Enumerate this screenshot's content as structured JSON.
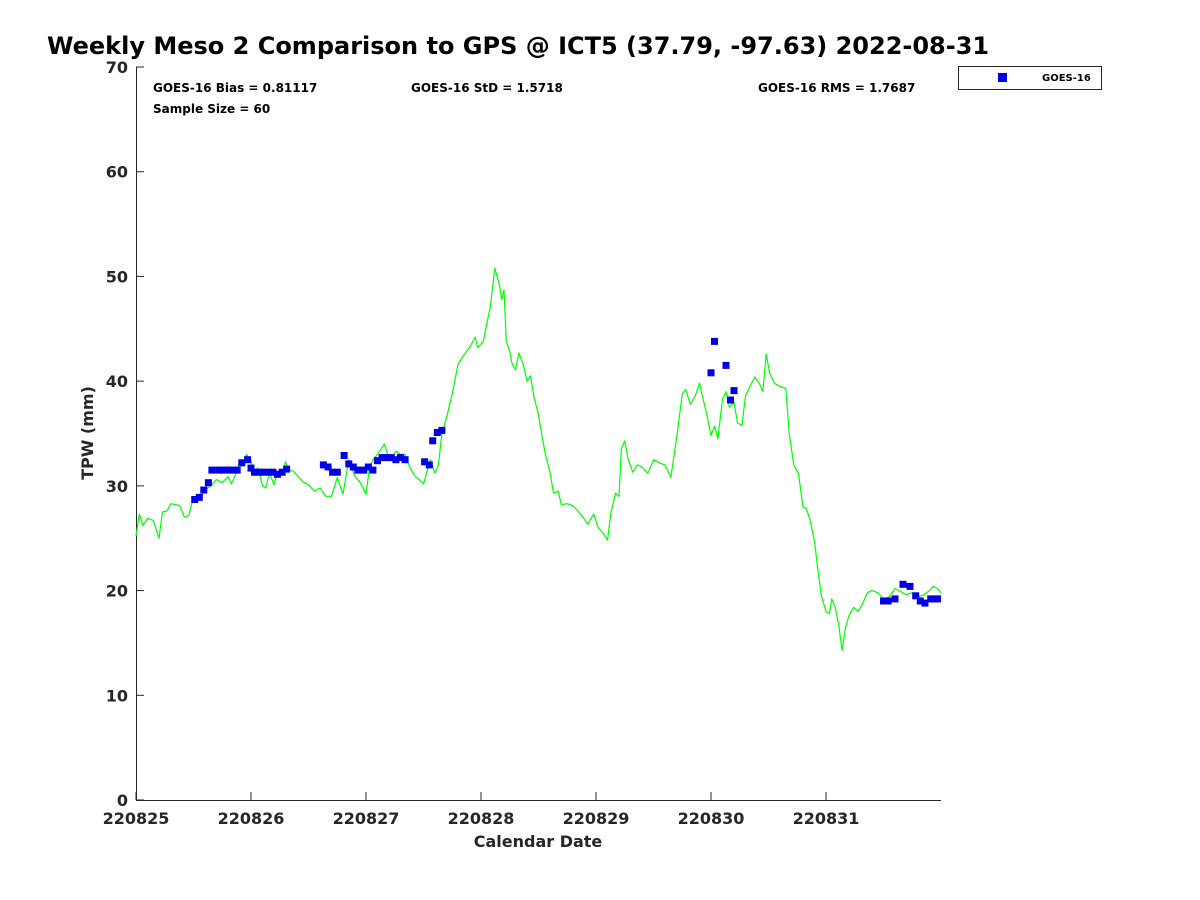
{
  "chart_data": {
    "type": "line",
    "title": "Weekly Meso 2 Comparison to GPS @ ICT5 (37.79, -97.63) 2022-08-31",
    "xlabel": "Calendar Date",
    "ylabel": "TPW (mm)",
    "xlim": [
      0,
      7
    ],
    "ylim": [
      0,
      70
    ],
    "x_ticks": [
      0,
      1,
      2,
      3,
      4,
      5,
      6
    ],
    "x_tick_labels": [
      "220825",
      "220826",
      "220827",
      "220828",
      "220829",
      "220830",
      "220831"
    ],
    "y_ticks": [
      0,
      10,
      20,
      30,
      40,
      50,
      60,
      70
    ],
    "y_tick_labels": [
      "0",
      "10",
      "20",
      "30",
      "40",
      "50",
      "60",
      "70"
    ],
    "grid": false,
    "legend_position": "outside-top-right",
    "stats": {
      "bias": "GOES-16 Bias = 0.81117",
      "std": "GOES-16 StD = 1.5718",
      "rms": "GOES-16 RMS = 1.7687",
      "sample": "Sample Size = 60"
    },
    "series": [
      {
        "name": "",
        "kind": "line",
        "color": "#00ff00",
        "points": [
          [
            0.0,
            25.2
          ],
          [
            0.03,
            27.3
          ],
          [
            0.06,
            26.2
          ],
          [
            0.1,
            26.9
          ],
          [
            0.15,
            26.7
          ],
          [
            0.2,
            25.0
          ],
          [
            0.23,
            27.5
          ],
          [
            0.27,
            27.6
          ],
          [
            0.3,
            28.3
          ],
          [
            0.35,
            28.2
          ],
          [
            0.38,
            28.1
          ],
          [
            0.42,
            27.0
          ],
          [
            0.46,
            27.2
          ],
          [
            0.5,
            28.9
          ],
          [
            0.55,
            28.6
          ],
          [
            0.6,
            29.6
          ],
          [
            0.65,
            30.0
          ],
          [
            0.7,
            30.6
          ],
          [
            0.75,
            30.3
          ],
          [
            0.8,
            30.9
          ],
          [
            0.83,
            30.2
          ],
          [
            0.87,
            31.2
          ],
          [
            0.9,
            32.3
          ],
          [
            0.93,
            32.0
          ],
          [
            0.96,
            33.0
          ],
          [
            1.0,
            32.4
          ],
          [
            1.03,
            31.0
          ],
          [
            1.06,
            31.7
          ],
          [
            1.1,
            30.0
          ],
          [
            1.13,
            29.8
          ],
          [
            1.16,
            31.3
          ],
          [
            1.2,
            30.1
          ],
          [
            1.23,
            31.3
          ],
          [
            1.27,
            31.0
          ],
          [
            1.3,
            32.3
          ],
          [
            1.33,
            31.5
          ],
          [
            1.37,
            31.4
          ],
          [
            1.4,
            31.0
          ],
          [
            1.45,
            30.4
          ],
          [
            1.5,
            30.1
          ],
          [
            1.55,
            29.5
          ],
          [
            1.6,
            29.8
          ],
          [
            1.65,
            29.0
          ],
          [
            1.7,
            29.0
          ],
          [
            1.75,
            30.8
          ],
          [
            1.8,
            29.2
          ],
          [
            1.85,
            32.5
          ],
          [
            1.9,
            31.0
          ],
          [
            1.95,
            30.3
          ],
          [
            2.0,
            29.2
          ],
          [
            2.03,
            31.6
          ],
          [
            2.06,
            32.5
          ],
          [
            2.1,
            33.0
          ],
          [
            2.13,
            33.5
          ],
          [
            2.16,
            34.0
          ],
          [
            2.2,
            32.6
          ],
          [
            2.23,
            32.8
          ],
          [
            2.26,
            33.3
          ],
          [
            2.3,
            33.0
          ],
          [
            2.34,
            33.0
          ],
          [
            2.38,
            31.8
          ],
          [
            2.42,
            31.0
          ],
          [
            2.46,
            30.6
          ],
          [
            2.5,
            30.2
          ],
          [
            2.53,
            31.3
          ],
          [
            2.56,
            32.5
          ],
          [
            2.6,
            31.2
          ],
          [
            2.63,
            32.0
          ],
          [
            2.66,
            35.0
          ],
          [
            2.7,
            36.5
          ],
          [
            2.75,
            38.8
          ],
          [
            2.8,
            41.6
          ],
          [
            2.85,
            42.5
          ],
          [
            2.9,
            43.2
          ],
          [
            2.95,
            44.2
          ],
          [
            2.97,
            43.2
          ],
          [
            3.02,
            43.8
          ],
          [
            3.06,
            46.0
          ],
          [
            3.08,
            47.0
          ],
          [
            3.12,
            50.8
          ],
          [
            3.16,
            49.2
          ],
          [
            3.18,
            47.8
          ],
          [
            3.2,
            48.7
          ],
          [
            3.22,
            43.8
          ],
          [
            3.25,
            42.8
          ],
          [
            3.27,
            41.7
          ],
          [
            3.3,
            41.1
          ],
          [
            3.33,
            42.7
          ],
          [
            3.37,
            41.5
          ],
          [
            3.4,
            40.0
          ],
          [
            3.43,
            40.5
          ],
          [
            3.46,
            38.5
          ],
          [
            3.5,
            36.8
          ],
          [
            3.53,
            34.8
          ],
          [
            3.56,
            33.0
          ],
          [
            3.6,
            31.3
          ],
          [
            3.63,
            29.3
          ],
          [
            3.67,
            29.5
          ],
          [
            3.7,
            28.2
          ],
          [
            3.75,
            28.3
          ],
          [
            3.8,
            28.1
          ],
          [
            3.85,
            27.5
          ],
          [
            3.9,
            26.8
          ],
          [
            3.93,
            26.3
          ],
          [
            3.95,
            26.8
          ],
          [
            3.98,
            27.3
          ],
          [
            4.02,
            26.0
          ],
          [
            4.06,
            25.5
          ],
          [
            4.1,
            24.8
          ],
          [
            4.13,
            27.5
          ],
          [
            4.17,
            29.3
          ],
          [
            4.2,
            29.0
          ],
          [
            4.22,
            33.5
          ],
          [
            4.25,
            34.3
          ],
          [
            4.28,
            32.5
          ],
          [
            4.32,
            31.3
          ],
          [
            4.36,
            32.0
          ],
          [
            4.4,
            31.8
          ],
          [
            4.45,
            31.2
          ],
          [
            4.5,
            32.5
          ],
          [
            4.55,
            32.2
          ],
          [
            4.6,
            32.0
          ],
          [
            4.65,
            30.8
          ],
          [
            4.7,
            34.5
          ],
          [
            4.75,
            38.8
          ],
          [
            4.78,
            39.2
          ],
          [
            4.82,
            37.8
          ],
          [
            4.86,
            38.5
          ],
          [
            4.9,
            39.8
          ],
          [
            4.93,
            38.3
          ],
          [
            4.96,
            37.0
          ],
          [
            5.0,
            34.8
          ],
          [
            5.03,
            35.7
          ],
          [
            5.06,
            34.5
          ],
          [
            5.1,
            38.3
          ],
          [
            5.13,
            39.0
          ],
          [
            5.16,
            37.5
          ],
          [
            5.2,
            38.0
          ],
          [
            5.23,
            36.0
          ],
          [
            5.27,
            35.8
          ],
          [
            5.3,
            38.6
          ],
          [
            5.34,
            39.5
          ],
          [
            5.38,
            40.4
          ],
          [
            5.42,
            39.8
          ],
          [
            5.45,
            39.0
          ],
          [
            5.48,
            42.6
          ],
          [
            5.51,
            40.8
          ],
          [
            5.55,
            39.8
          ],
          [
            5.6,
            39.5
          ],
          [
            5.65,
            39.3
          ],
          [
            5.68,
            35.0
          ],
          [
            5.72,
            32.0
          ],
          [
            5.76,
            31.2
          ],
          [
            5.8,
            28.0
          ],
          [
            5.83,
            27.8
          ],
          [
            5.86,
            26.8
          ],
          [
            5.9,
            24.7
          ],
          [
            5.93,
            22.0
          ],
          [
            5.96,
            19.5
          ],
          [
            6.0,
            18.0
          ],
          [
            6.03,
            17.8
          ],
          [
            6.05,
            19.2
          ],
          [
            6.08,
            18.4
          ],
          [
            6.11,
            16.8
          ],
          [
            6.14,
            14.3
          ],
          [
            6.17,
            16.5
          ],
          [
            6.2,
            17.6
          ],
          [
            6.24,
            18.4
          ],
          [
            6.28,
            18.0
          ],
          [
            6.32,
            18.8
          ],
          [
            6.36,
            19.8
          ],
          [
            6.4,
            20.0
          ],
          [
            6.45,
            19.8
          ],
          [
            6.5,
            19.2
          ],
          [
            6.55,
            19.4
          ],
          [
            6.6,
            20.2
          ],
          [
            6.65,
            19.9
          ],
          [
            6.7,
            19.6
          ],
          [
            6.75,
            19.8
          ],
          [
            6.8,
            19.4
          ],
          [
            6.85,
            19.6
          ],
          [
            6.9,
            20.0
          ],
          [
            6.93,
            20.4
          ],
          [
            6.97,
            20.2
          ],
          [
            7.0,
            19.8
          ]
        ]
      },
      {
        "name": "GOES-16",
        "kind": "scatter",
        "color": "#0000e6",
        "points": [
          [
            0.51,
            28.7
          ],
          [
            0.55,
            28.9
          ],
          [
            0.59,
            29.6
          ],
          [
            0.63,
            30.3
          ],
          [
            0.66,
            31.5
          ],
          [
            0.72,
            31.5
          ],
          [
            0.76,
            31.5
          ],
          [
            0.8,
            31.5
          ],
          [
            0.84,
            31.5
          ],
          [
            0.88,
            31.5
          ],
          [
            0.92,
            32.2
          ],
          [
            0.97,
            32.5
          ],
          [
            1.0,
            31.7
          ],
          [
            1.03,
            31.3
          ],
          [
            1.07,
            31.3
          ],
          [
            1.11,
            31.3
          ],
          [
            1.15,
            31.3
          ],
          [
            1.19,
            31.3
          ],
          [
            1.23,
            31.1
          ],
          [
            1.27,
            31.3
          ],
          [
            1.31,
            31.6
          ],
          [
            1.63,
            32.0
          ],
          [
            1.67,
            31.8
          ],
          [
            1.71,
            31.3
          ],
          [
            1.75,
            31.3
          ],
          [
            1.81,
            32.9
          ],
          [
            1.85,
            32.1
          ],
          [
            1.89,
            31.8
          ],
          [
            1.93,
            31.5
          ],
          [
            1.98,
            31.5
          ],
          [
            2.02,
            31.8
          ],
          [
            2.06,
            31.5
          ],
          [
            2.1,
            32.4
          ],
          [
            2.14,
            32.7
          ],
          [
            2.18,
            32.7
          ],
          [
            2.22,
            32.7
          ],
          [
            2.26,
            32.5
          ],
          [
            2.3,
            32.7
          ],
          [
            2.34,
            32.5
          ],
          [
            2.51,
            32.3
          ],
          [
            2.55,
            32.0
          ],
          [
            2.58,
            34.3
          ],
          [
            2.62,
            35.1
          ],
          [
            2.66,
            35.3
          ],
          [
            5.0,
            40.8
          ],
          [
            5.03,
            43.8
          ],
          [
            5.13,
            41.5
          ],
          [
            5.17,
            38.2
          ],
          [
            5.2,
            39.1
          ],
          [
            6.5,
            19.0
          ],
          [
            6.54,
            19.0
          ],
          [
            6.6,
            19.2
          ],
          [
            6.67,
            20.6
          ],
          [
            6.73,
            20.4
          ],
          [
            6.78,
            19.5
          ],
          [
            6.82,
            19.0
          ],
          [
            6.86,
            18.8
          ],
          [
            6.91,
            19.2
          ],
          [
            6.94,
            19.2
          ],
          [
            6.97,
            19.2
          ]
        ]
      }
    ]
  },
  "legend": {
    "label": "GOES-16"
  }
}
